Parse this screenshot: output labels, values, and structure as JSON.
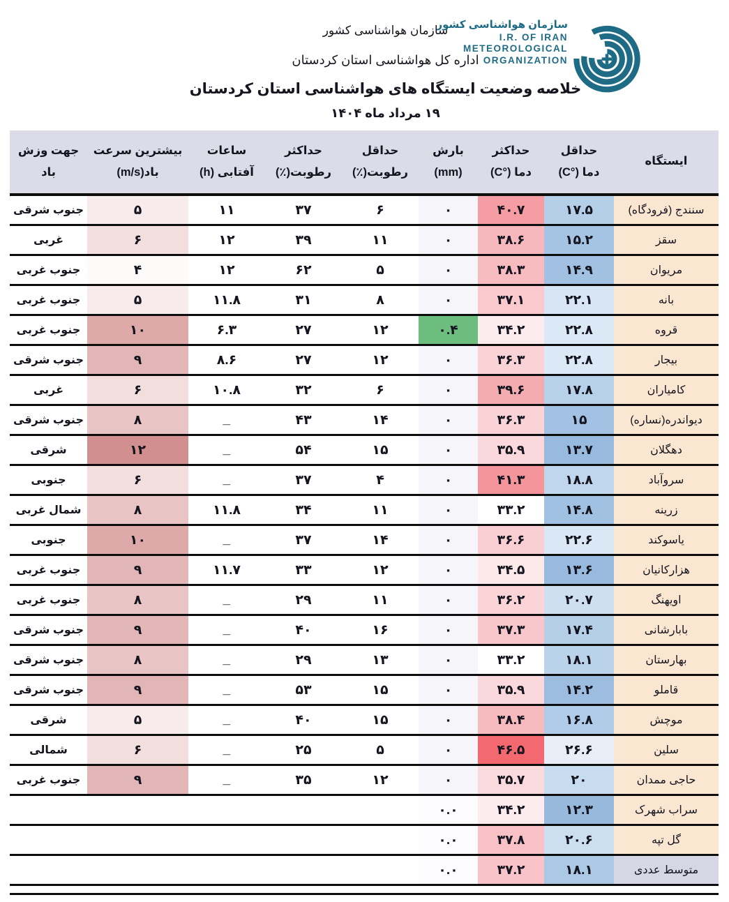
{
  "header": {
    "org": "سازمان هواشناسی کشور",
    "dept": "اداره کل هواشناسی استان کردستان",
    "title": "خلاصه وضعیت ایستگاه های هواشناسی استان کردستان",
    "date": "۱۹ مرداد ماه ۱۴۰۴"
  },
  "logo": {
    "fa": "سازمان هواشناسی کشور",
    "en1": "I.R. OF IRAN",
    "en2": "METEOROLOGICAL",
    "en3": "ORGANIZATION",
    "color": "#1e6b86"
  },
  "colors": {
    "header_bg": "#dcdce9",
    "station_bg": "#fbe7d1",
    "average_label_bg": "#d5d7e5",
    "rain_bg": "#f6f6fa",
    "rain_green": "#6dbd7f",
    "border": "#0d0d0d"
  },
  "table": {
    "columns": [
      {
        "id": "station",
        "line1": "ایستگاه",
        "line2": ""
      },
      {
        "id": "tmin",
        "line1": "حداقل",
        "line2": "دما (°C)"
      },
      {
        "id": "tmax",
        "line1": "حداکثر",
        "line2": "دما (°C)"
      },
      {
        "id": "rain",
        "line1": "بارش",
        "line2": "(mm)"
      },
      {
        "id": "hmin",
        "line1": "حداقل",
        "line2": "رطوبت(٪)"
      },
      {
        "id": "hmax",
        "line1": "حداکثر",
        "line2": "رطوبت(٪)"
      },
      {
        "id": "sun",
        "line1": "ساعات",
        "line2": "آفتابی (h)"
      },
      {
        "id": "wind",
        "line1": "بیشترین سرعت",
        "line2": "باد(m/s)"
      },
      {
        "id": "dir",
        "line1": "جهت وزش",
        "line2": "باد"
      }
    ],
    "rows": [
      {
        "station": "سنندج (فرودگاه)",
        "tmin": "۱۷.۵",
        "tmax": "۴۰.۷",
        "rain": "۰",
        "hmin": "۶",
        "hmax": "۳۷",
        "sun": "۱۱",
        "wind": "۵",
        "dir": "جنوب شرقی",
        "tmin_bg": "#b5cfe9",
        "tmax_bg": "#f59da3",
        "rain_bg": "#f6f6fa",
        "wind_bg": "#f8ebeb"
      },
      {
        "station": "سقز",
        "tmin": "۱۵.۲",
        "tmax": "۳۸.۶",
        "rain": "۰",
        "hmin": "۱۱",
        "hmax": "۳۹",
        "sun": "۱۲",
        "wind": "۶",
        "dir": "غربی",
        "tmin_bg": "#a5c3e3",
        "tmax_bg": "#f6b8bd",
        "rain_bg": "#f6f6fa",
        "wind_bg": "#f3dede"
      },
      {
        "station": "مریوان",
        "tmin": "۱۴.۹",
        "tmax": "۳۸.۳",
        "rain": "۰",
        "hmin": "۵",
        "hmax": "۶۲",
        "sun": "۱۲",
        "wind": "۴",
        "dir": "جنوب غربی",
        "tmin_bg": "#a2c1e2",
        "tmax_bg": "#f7bbc0",
        "rain_bg": "#f6f6fa",
        "wind_bg": "#fdfafa"
      },
      {
        "station": "بانه",
        "tmin": "۲۲.۱",
        "tmax": "۳۷.۱",
        "rain": "۰",
        "hmin": "۸",
        "hmax": "۳۱",
        "sun": "۱۱.۸",
        "wind": "۵",
        "dir": "جنوب غربی",
        "tmin_bg": "#d7e5f4",
        "tmax_bg": "#f9c9cd",
        "rain_bg": "#f6f6fa",
        "wind_bg": "#f8ebeb"
      },
      {
        "station": "قروه",
        "tmin": "۲۲.۸",
        "tmax": "۳۴.۲",
        "rain": "۰.۴",
        "hmin": "۱۲",
        "hmax": "۲۷",
        "sun": "۶.۳",
        "wind": "۱۰",
        "dir": "جنوب غربی",
        "tmin_bg": "#dbe8f5",
        "tmax_bg": "#fdecee",
        "rain_bg": "#6dbd7f",
        "wind_bg": "#dda9a9"
      },
      {
        "station": "بیجار",
        "tmin": "۲۲.۸",
        "tmax": "۳۶.۳",
        "rain": "۰",
        "hmin": "۱۲",
        "hmax": "۲۷",
        "sun": "۸.۶",
        "wind": "۹",
        "dir": "جنوب شرقی",
        "tmin_bg": "#dbe8f5",
        "tmax_bg": "#fad3d6",
        "rain_bg": "#f6f6fa",
        "wind_bg": "#e2b6b6"
      },
      {
        "station": "کامیاران",
        "tmin": "۱۷.۸",
        "tmax": "۳۹.۶",
        "rain": "۰",
        "hmin": "۶",
        "hmax": "۳۲",
        "sun": "۱۰.۸",
        "wind": "۶",
        "dir": "غربی",
        "tmin_bg": "#b8d1ea",
        "tmax_bg": "#f5acb1",
        "rain_bg": "#f6f6fa",
        "wind_bg": "#f3dede"
      },
      {
        "station": "دیواندره(نساره)",
        "tmin": "۱۵",
        "tmax": "۳۶.۳",
        "rain": "۰",
        "hmin": "۱۴",
        "hmax": "۴۳",
        "sun": "_",
        "wind": "۸",
        "dir": "جنوب شرقی",
        "tmin_bg": "#a3c2e3",
        "tmax_bg": "#fad3d6",
        "rain_bg": "#f6f6fa",
        "wind_bg": "#e8c4c4"
      },
      {
        "station": "دهگلان",
        "tmin": "۱۳.۷",
        "tmax": "۳۵.۹",
        "rain": "۰",
        "hmin": "۱۵",
        "hmax": "۵۴",
        "sun": "_",
        "wind": "۱۲",
        "dir": "شرقی",
        "tmin_bg": "#98bade",
        "tmax_bg": "#fbd8db",
        "rain_bg": "#f6f6fa",
        "wind_bg": "#d18f8f"
      },
      {
        "station": "سروآباد",
        "tmin": "۱۸.۸",
        "tmax": "۴۱.۳",
        "rain": "۰",
        "hmin": "۴",
        "hmax": "۳۷",
        "sun": "_",
        "wind": "۶",
        "dir": "جنوبی",
        "tmin_bg": "#bfd6ec",
        "tmax_bg": "#f4959b",
        "rain_bg": "#f6f6fa",
        "wind_bg": "#f3dede"
      },
      {
        "station": "زرینه",
        "tmin": "۱۴.۸",
        "tmax": "۳۳.۲",
        "rain": "۰",
        "hmin": "۱۱",
        "hmax": "۳۴",
        "sun": "۱۱.۸",
        "wind": "۸",
        "dir": "شمال غربی",
        "tmin_bg": "#a1c1e2",
        "tmax_bg": "#ffffff",
        "rain_bg": "#f6f6fa",
        "wind_bg": "#e8c4c4"
      },
      {
        "station": "یاسوکند",
        "tmin": "۲۲.۶",
        "tmax": "۳۶.۶",
        "rain": "۰",
        "hmin": "۱۴",
        "hmax": "۳۷",
        "sun": "_",
        "wind": "۱۰",
        "dir": "جنوبی",
        "tmin_bg": "#dae7f5",
        "tmax_bg": "#f9cfd3",
        "rain_bg": "#f6f6fa",
        "wind_bg": "#dda9a9"
      },
      {
        "station": "هزارکانیان",
        "tmin": "۱۳.۶",
        "tmax": "۳۴.۵",
        "rain": "۰",
        "hmin": "۱۲",
        "hmax": "۳۳",
        "sun": "۱۱.۷",
        "wind": "۹",
        "dir": "جنوب غربی",
        "tmin_bg": "#97bade",
        "tmax_bg": "#fde9ea",
        "rain_bg": "#f6f6fa",
        "wind_bg": "#e2b6b6"
      },
      {
        "station": "اویهنگ",
        "tmin": "۲۰.۷",
        "tmax": "۳۶.۲",
        "rain": "۰",
        "hmin": "۱۱",
        "hmax": "۲۹",
        "sun": "_",
        "wind": "۸",
        "dir": "جنوب غربی",
        "tmin_bg": "#cddff1",
        "tmax_bg": "#fad4d7",
        "rain_bg": "#f6f6fa",
        "wind_bg": "#e8c4c4"
      },
      {
        "station": "بابارشانی",
        "tmin": "۱۷.۴",
        "tmax": "۳۷.۳",
        "rain": "۰",
        "hmin": "۱۶",
        "hmax": "۴۰",
        "sun": "_",
        "wind": "۹",
        "dir": "جنوب شرقی",
        "tmin_bg": "#b5cfe9",
        "tmax_bg": "#f8c7cb",
        "rain_bg": "#f6f6fa",
        "wind_bg": "#e2b6b6"
      },
      {
        "station": "بهارستان",
        "tmin": "۱۸.۱",
        "tmax": "۳۳.۲",
        "rain": "۰",
        "hmin": "۱۳",
        "hmax": "۲۹",
        "sun": "_",
        "wind": "۸",
        "dir": "جنوب شرقی",
        "tmin_bg": "#bad3eb",
        "tmax_bg": "#ffffff",
        "rain_bg": "#f6f6fa",
        "wind_bg": "#e8c4c4"
      },
      {
        "station": "قاملو",
        "tmin": "۱۴.۲",
        "tmax": "۳۵.۹",
        "rain": "۰",
        "hmin": "۱۵",
        "hmax": "۵۳",
        "sun": "_",
        "wind": "۹",
        "dir": "جنوب شرقی",
        "tmin_bg": "#9cbde0",
        "tmax_bg": "#fbd8db",
        "rain_bg": "#f6f6fa",
        "wind_bg": "#e2b6b6"
      },
      {
        "station": "موچش",
        "tmin": "۱۶.۸",
        "tmax": "۳۸.۴",
        "rain": "۰",
        "hmin": "۱۵",
        "hmax": "۴۰",
        "sun": "_",
        "wind": "۵",
        "dir": "شرقی",
        "tmin_bg": "#b0cce8",
        "tmax_bg": "#f7babf",
        "rain_bg": "#f6f6fa",
        "wind_bg": "#f8ebeb"
      },
      {
        "station": "سلین",
        "tmin": "۲۶.۶",
        "tmax": "۴۶.۵",
        "rain": "۰",
        "hmin": "۵",
        "hmax": "۲۵",
        "sun": "_",
        "wind": "۶",
        "dir": "شمالی",
        "tmin_bg": "#e9edf6",
        "tmax_bg": "#f4696f",
        "rain_bg": "#f6f6fa",
        "wind_bg": "#f3dede"
      },
      {
        "station": "حاجی ممدان",
        "tmin": "۲۰",
        "tmax": "۳۵.۷",
        "rain": "۰",
        "hmin": "۱۲",
        "hmax": "۳۵",
        "sun": "_",
        "wind": "۹",
        "dir": "جنوب غربی",
        "tmin_bg": "#c8dcef",
        "tmax_bg": "#fbdadd",
        "rain_bg": "#f6f6fa",
        "wind_bg": "#e2b6b6"
      },
      {
        "station": "سراب شهرک",
        "tmin": "۱۲.۳",
        "tmax": "۳۴.۲",
        "rain": "۰.۰",
        "partial": true,
        "tmin_bg": "#97b9dc",
        "tmax_bg": "#fdecee",
        "rain_bg": "#fcfcfe"
      },
      {
        "station": "گل تپه",
        "tmin": "۲۰.۶",
        "tmax": "۳۷.۸",
        "rain": "۰.۰",
        "partial": true,
        "tmin_bg": "#ccdff1",
        "tmax_bg": "#f7c1c5",
        "rain_bg": "#fcfcfe"
      },
      {
        "station": "متوسط عددی",
        "tmin": "۱۸.۱",
        "tmax": "۳۷.۲",
        "rain": "۰.۰",
        "partial": true,
        "last": true,
        "tmin_bg": "#abc8e4",
        "tmax_bg": "#f9c4c9",
        "rain_bg": "#fcfcfe",
        "station_bg": "#d5d7e5"
      }
    ]
  }
}
